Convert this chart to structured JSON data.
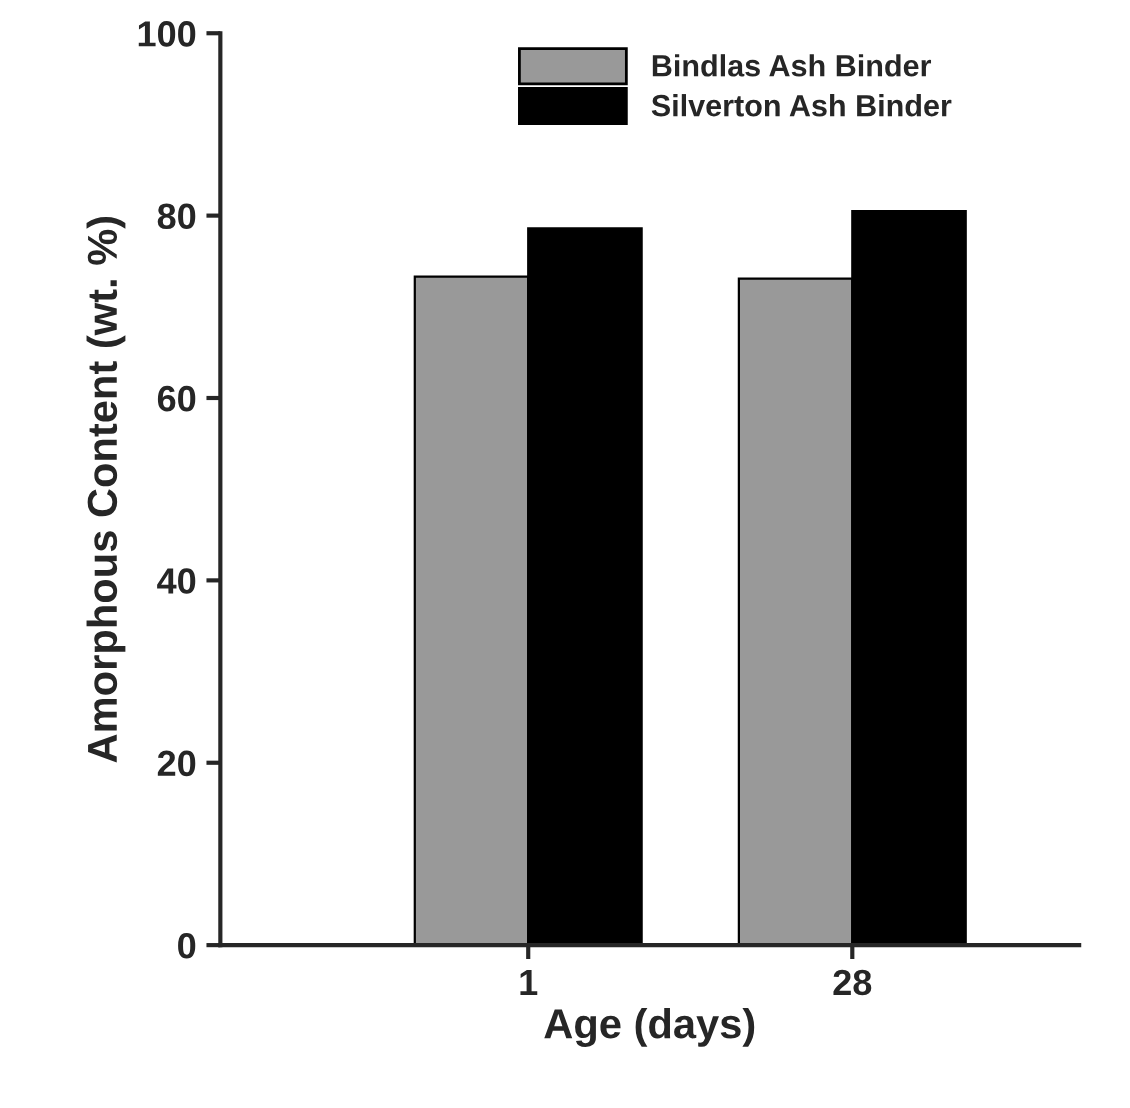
{
  "chart_data": {
    "type": "bar",
    "xlabel": "Age (days)",
    "ylabel": "Amorphous Content (wt. %)",
    "categories": [
      "1",
      "28"
    ],
    "series": [
      {
        "name": "Bindlas Ash Binder",
        "color": "#999999",
        "values": [
          73.3,
          73.1
        ]
      },
      {
        "name": "Silverton Ash Binder",
        "color": "#000000",
        "values": [
          78.6,
          80.5
        ]
      }
    ],
    "ylim": [
      0,
      100
    ],
    "yticks": [
      0,
      20,
      40,
      60,
      80,
      100
    ],
    "grid": false,
    "legend": "top"
  }
}
